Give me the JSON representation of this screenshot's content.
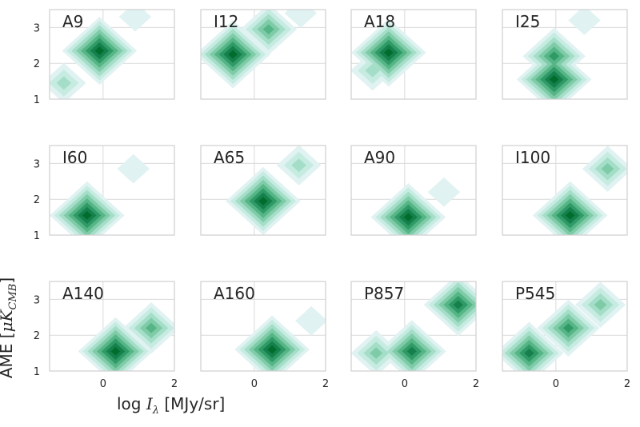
{
  "axes": {
    "xlabel_pre": "log ",
    "xlabel_var": "I",
    "xlabel_sub": "λ",
    "xlabel_post": " [MJy/sr]",
    "ylabel_pre": "AME [",
    "ylabel_var": "μK",
    "ylabel_sub": "CMB",
    "ylabel_post": "]",
    "xticks": [
      "0",
      "2"
    ],
    "yticks": [
      "1",
      "2",
      "3"
    ]
  },
  "colors": {
    "palette": [
      "#e0f2f1",
      "#c6ebe0",
      "#a4ddc8",
      "#7fcba7",
      "#56b586",
      "#2f9a66",
      "#16804c",
      "#006d2c"
    ],
    "grid": "#d9d9d9",
    "axes_edge": "#cfcfcf",
    "text": "#262626"
  },
  "chart_data": [
    {
      "type": "contour",
      "title": "A9",
      "xlim": [
        -1.5,
        2
      ],
      "ylim": [
        1,
        3.5
      ],
      "grid": true,
      "blobs": [
        {
          "x": -0.1,
          "y": 2.35,
          "w": 8
        },
        {
          "x": -1.1,
          "y": 1.45,
          "w": 3
        },
        {
          "x": 0.9,
          "y": 3.3,
          "w": 1
        }
      ]
    },
    {
      "type": "contour",
      "title": "I12",
      "xlim": [
        -1.5,
        2
      ],
      "ylim": [
        1,
        3.5
      ],
      "grid": true,
      "blobs": [
        {
          "x": -0.6,
          "y": 2.25,
          "w": 8
        },
        {
          "x": 0.4,
          "y": 2.95,
          "w": 5
        },
        {
          "x": 1.3,
          "y": 3.4,
          "w": 1
        }
      ]
    },
    {
      "type": "contour",
      "title": "A18",
      "xlim": [
        -1.5,
        2
      ],
      "ylim": [
        1,
        3.5
      ],
      "grid": true,
      "blobs": [
        {
          "x": -0.45,
          "y": 2.3,
          "w": 8
        },
        {
          "x": -0.9,
          "y": 1.8,
          "w": 3
        }
      ]
    },
    {
      "type": "contour",
      "title": "I25",
      "xlim": [
        -1.5,
        2
      ],
      "ylim": [
        1,
        3.5
      ],
      "grid": true,
      "blobs": [
        {
          "x": -0.05,
          "y": 1.55,
          "w": 8
        },
        {
          "x": -0.05,
          "y": 2.2,
          "w": 6
        },
        {
          "x": 0.8,
          "y": 3.2,
          "w": 1
        }
      ]
    },
    {
      "type": "contour",
      "title": "I60",
      "xlim": [
        -1.5,
        2
      ],
      "ylim": [
        1,
        3.5
      ],
      "grid": true,
      "blobs": [
        {
          "x": -0.45,
          "y": 1.55,
          "w": 8
        },
        {
          "x": 0.85,
          "y": 2.85,
          "w": 1
        }
      ]
    },
    {
      "type": "contour",
      "title": "A65",
      "xlim": [
        -1.5,
        2
      ],
      "ylim": [
        1,
        3.5
      ],
      "grid": true,
      "blobs": [
        {
          "x": 0.25,
          "y": 1.95,
          "w": 8
        },
        {
          "x": 1.25,
          "y": 2.95,
          "w": 3
        }
      ]
    },
    {
      "type": "contour",
      "title": "A90",
      "xlim": [
        -1.5,
        2
      ],
      "ylim": [
        1,
        3.5
      ],
      "grid": true,
      "blobs": [
        {
          "x": 0.1,
          "y": 1.5,
          "w": 8
        },
        {
          "x": 1.1,
          "y": 2.2,
          "w": 1
        }
      ]
    },
    {
      "type": "contour",
      "title": "I100",
      "xlim": [
        -1.5,
        2
      ],
      "ylim": [
        1,
        3.5
      ],
      "grid": true,
      "blobs": [
        {
          "x": 0.4,
          "y": 1.55,
          "w": 8
        },
        {
          "x": 1.45,
          "y": 2.85,
          "w": 4
        }
      ]
    },
    {
      "type": "contour",
      "title": "A140",
      "xlim": [
        -1.5,
        2
      ],
      "ylim": [
        1,
        3.5
      ],
      "grid": true,
      "blobs": [
        {
          "x": 0.35,
          "y": 1.55,
          "w": 8
        },
        {
          "x": 1.35,
          "y": 2.2,
          "w": 5
        }
      ]
    },
    {
      "type": "contour",
      "title": "A160",
      "xlim": [
        -1.5,
        2
      ],
      "ylim": [
        1,
        3.5
      ],
      "grid": true,
      "blobs": [
        {
          "x": 0.5,
          "y": 1.6,
          "w": 8
        },
        {
          "x": 1.6,
          "y": 2.4,
          "w": 1
        }
      ]
    },
    {
      "type": "contour",
      "title": "P857",
      "xlim": [
        -1.5,
        2
      ],
      "ylim": [
        1,
        3.5
      ],
      "grid": true,
      "blobs": [
        {
          "x": 0.2,
          "y": 1.55,
          "w": 7
        },
        {
          "x": 1.5,
          "y": 2.85,
          "w": 7
        },
        {
          "x": -0.8,
          "y": 1.5,
          "w": 4
        }
      ]
    },
    {
      "type": "contour",
      "title": "P545",
      "xlim": [
        -1.5,
        2
      ],
      "ylim": [
        1,
        3.5
      ],
      "grid": true,
      "blobs": [
        {
          "x": -0.75,
          "y": 1.5,
          "w": 7
        },
        {
          "x": 0.35,
          "y": 2.2,
          "w": 6
        },
        {
          "x": 1.25,
          "y": 2.85,
          "w": 4
        }
      ]
    }
  ]
}
